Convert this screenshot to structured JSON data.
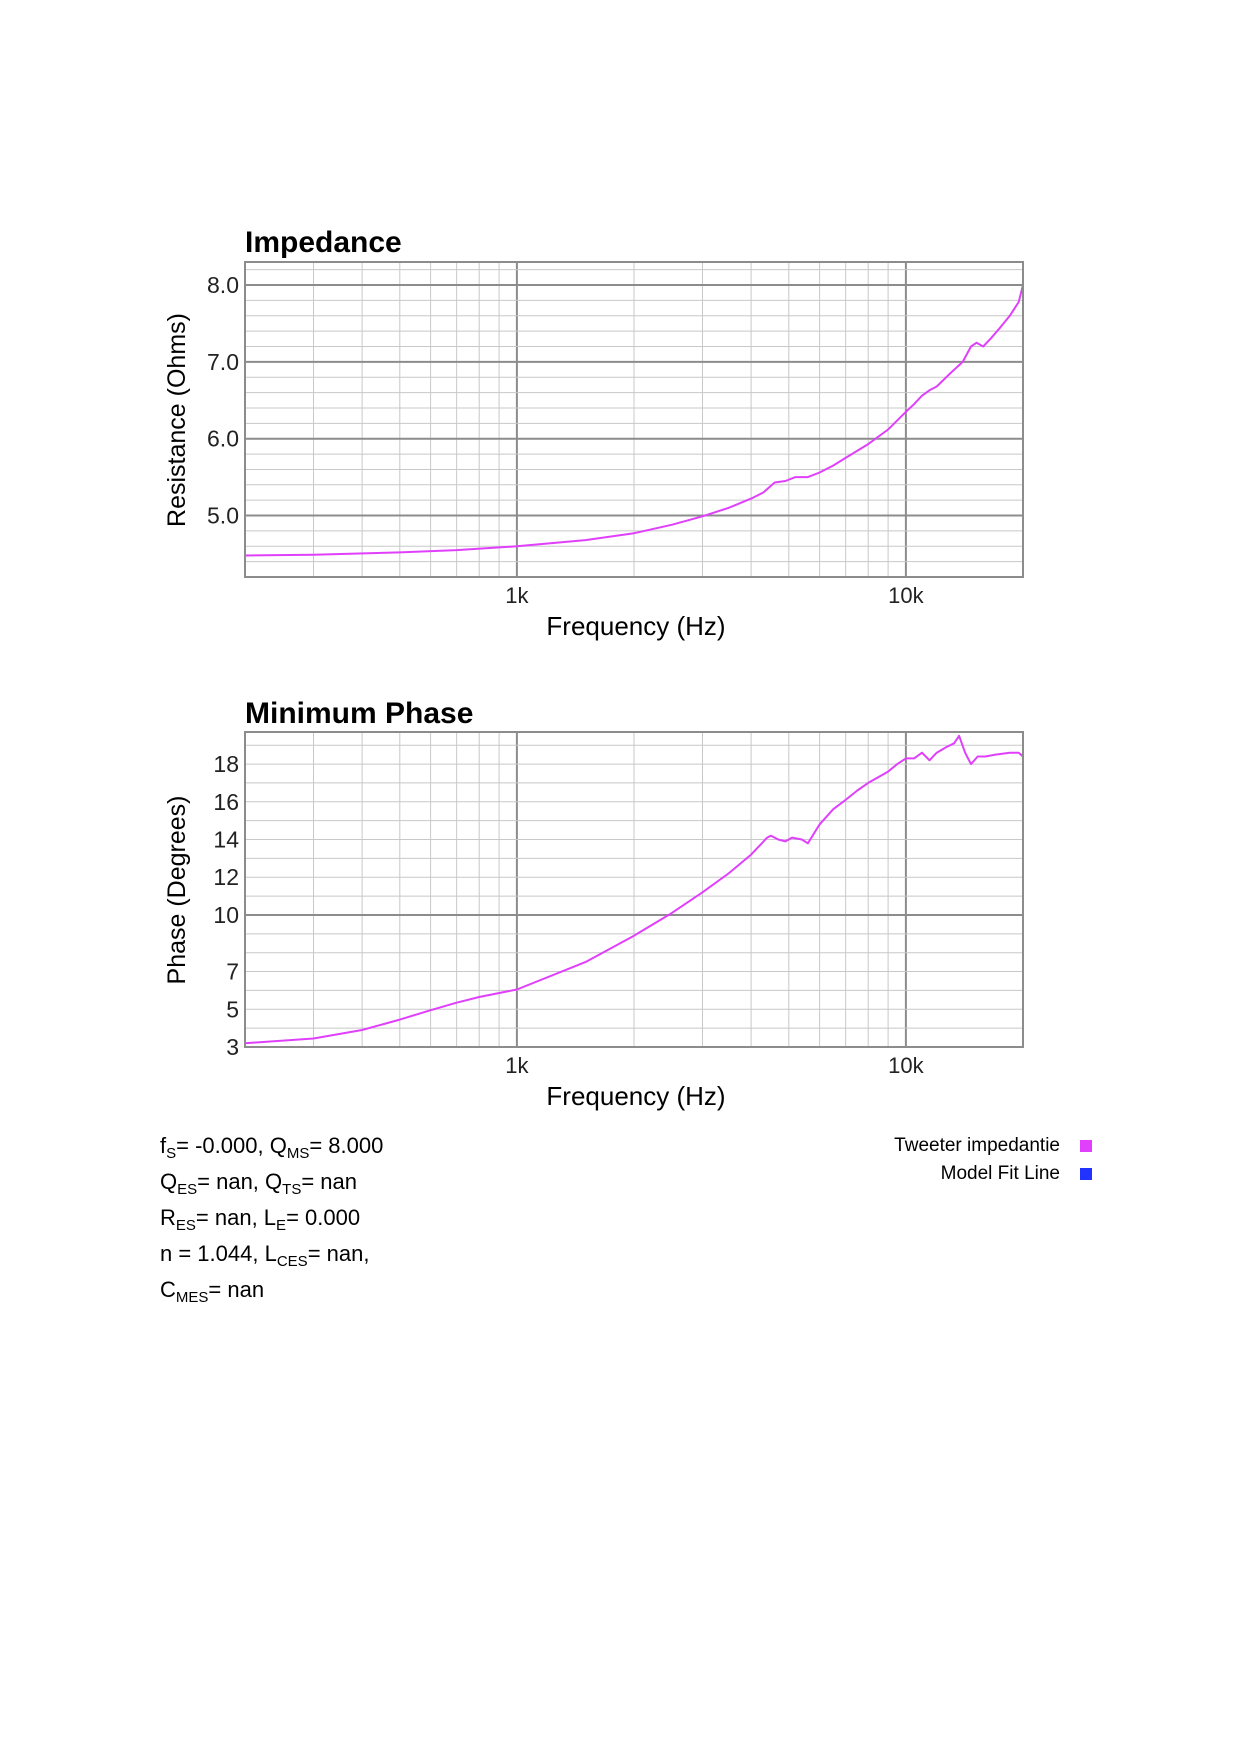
{
  "charts": [
    {
      "title": "Impedance",
      "xlabel": "Frequency (Hz)",
      "ylabel": "Resistance (Ohms)"
    },
    {
      "title": "Minimum Phase",
      "xlabel": "Frequency (Hz)",
      "ylabel": "Phase (Degrees)"
    }
  ],
  "chart_data": [
    {
      "type": "line",
      "title": "Impedance",
      "xlabel": "Frequency (Hz)",
      "ylabel": "Resistance (Ohms)",
      "x_scale": "log",
      "xlim": [
        200,
        20000
      ],
      "ylim": [
        4.2,
        8.3
      ],
      "x_ticks": [
        {
          "value": 1000,
          "label": "1k"
        },
        {
          "value": 10000,
          "label": "10k"
        }
      ],
      "y_ticks": [
        {
          "value": 5,
          "label": "5.0"
        },
        {
          "value": 6,
          "label": "6.0"
        },
        {
          "value": 7,
          "label": "7.0"
        },
        {
          "value": 8,
          "label": "8.0"
        }
      ],
      "y_minor_step": 0.2,
      "grid": true,
      "series": [
        {
          "name": "Tweeter impedantie",
          "color": "#e040fb",
          "points": [
            [
              200,
              4.48
            ],
            [
              300,
              4.49
            ],
            [
              500,
              4.52
            ],
            [
              700,
              4.55
            ],
            [
              1000,
              4.6
            ],
            [
              1500,
              4.68
            ],
            [
              2000,
              4.77
            ],
            [
              2500,
              4.88
            ],
            [
              3000,
              4.99
            ],
            [
              3500,
              5.1
            ],
            [
              4000,
              5.22
            ],
            [
              4300,
              5.3
            ],
            [
              4600,
              5.43
            ],
            [
              4900,
              5.45
            ],
            [
              5200,
              5.5
            ],
            [
              5600,
              5.5
            ],
            [
              6000,
              5.56
            ],
            [
              6500,
              5.65
            ],
            [
              7000,
              5.75
            ],
            [
              8000,
              5.93
            ],
            [
              9000,
              6.12
            ],
            [
              10000,
              6.35
            ],
            [
              10500,
              6.45
            ],
            [
              11000,
              6.56
            ],
            [
              11500,
              6.63
            ],
            [
              12000,
              6.68
            ],
            [
              13000,
              6.85
            ],
            [
              14000,
              7.0
            ],
            [
              14700,
              7.2
            ],
            [
              15200,
              7.25
            ],
            [
              15800,
              7.2
            ],
            [
              16500,
              7.3
            ],
            [
              17500,
              7.45
            ],
            [
              18500,
              7.6
            ],
            [
              19500,
              7.78
            ],
            [
              20000,
              8.0
            ]
          ]
        }
      ]
    },
    {
      "type": "line",
      "title": "Minimum Phase",
      "xlabel": "Frequency (Hz)",
      "ylabel": "Phase (Degrees)",
      "x_scale": "log",
      "xlim": [
        200,
        20000
      ],
      "ylim": [
        3,
        19.7
      ],
      "x_ticks": [
        {
          "value": 1000,
          "label": "1k"
        },
        {
          "value": 10000,
          "label": "10k"
        }
      ],
      "y_ticks": [
        {
          "value": 3,
          "label": "3"
        },
        {
          "value": 5,
          "label": "5"
        },
        {
          "value": 7,
          "label": "7"
        },
        {
          "value": 10,
          "label": "10"
        },
        {
          "value": 12,
          "label": "12"
        },
        {
          "value": 14,
          "label": "14"
        },
        {
          "value": 16,
          "label": "16"
        },
        {
          "value": 18,
          "label": "18"
        }
      ],
      "y_major": [
        10
      ],
      "y_minor_step": 1,
      "grid": true,
      "series": [
        {
          "name": "Tweeter impedantie",
          "color": "#e040fb",
          "points": [
            [
              200,
              3.2
            ],
            [
              300,
              3.45
            ],
            [
              400,
              3.9
            ],
            [
              500,
              4.45
            ],
            [
              600,
              4.95
            ],
            [
              700,
              5.35
            ],
            [
              800,
              5.65
            ],
            [
              1000,
              6.05
            ],
            [
              1500,
              7.5
            ],
            [
              2000,
              8.9
            ],
            [
              2500,
              10.1
            ],
            [
              3000,
              11.2
            ],
            [
              3500,
              12.2
            ],
            [
              4000,
              13.2
            ],
            [
              4400,
              14.1
            ],
            [
              4500,
              14.2
            ],
            [
              4700,
              14.0
            ],
            [
              4900,
              13.9
            ],
            [
              5100,
              14.1
            ],
            [
              5400,
              14.0
            ],
            [
              5600,
              13.8
            ],
            [
              6000,
              14.8
            ],
            [
              6500,
              15.6
            ],
            [
              7000,
              16.1
            ],
            [
              7500,
              16.6
            ],
            [
              8000,
              17.0
            ],
            [
              9000,
              17.6
            ],
            [
              9500,
              18.0
            ],
            [
              10000,
              18.3
            ],
            [
              10500,
              18.3
            ],
            [
              11000,
              18.6
            ],
            [
              11500,
              18.2
            ],
            [
              12000,
              18.6
            ],
            [
              12700,
              18.9
            ],
            [
              13300,
              19.1
            ],
            [
              13700,
              19.5
            ],
            [
              14200,
              18.6
            ],
            [
              14700,
              18.0
            ],
            [
              15300,
              18.4
            ],
            [
              16000,
              18.4
            ],
            [
              17000,
              18.5
            ],
            [
              18500,
              18.6
            ],
            [
              19500,
              18.6
            ],
            [
              20000,
              18.4
            ]
          ]
        }
      ]
    }
  ],
  "params": {
    "fs_value": "= -0.000,",
    "qms_value": "= 8.000",
    "qes_value": "= nan,",
    "qts_value": "= nan",
    "res_value": "= nan,",
    "le_value": "= 0.000",
    "n_text": "n = 1.044,",
    "lces_value": "= nan,",
    "cmes_value": "= nan"
  },
  "legend": [
    {
      "label": "Tweeter impedantie",
      "color": "#e040fb"
    },
    {
      "label": "Model Fit Line",
      "color": "#2233ff"
    }
  ]
}
